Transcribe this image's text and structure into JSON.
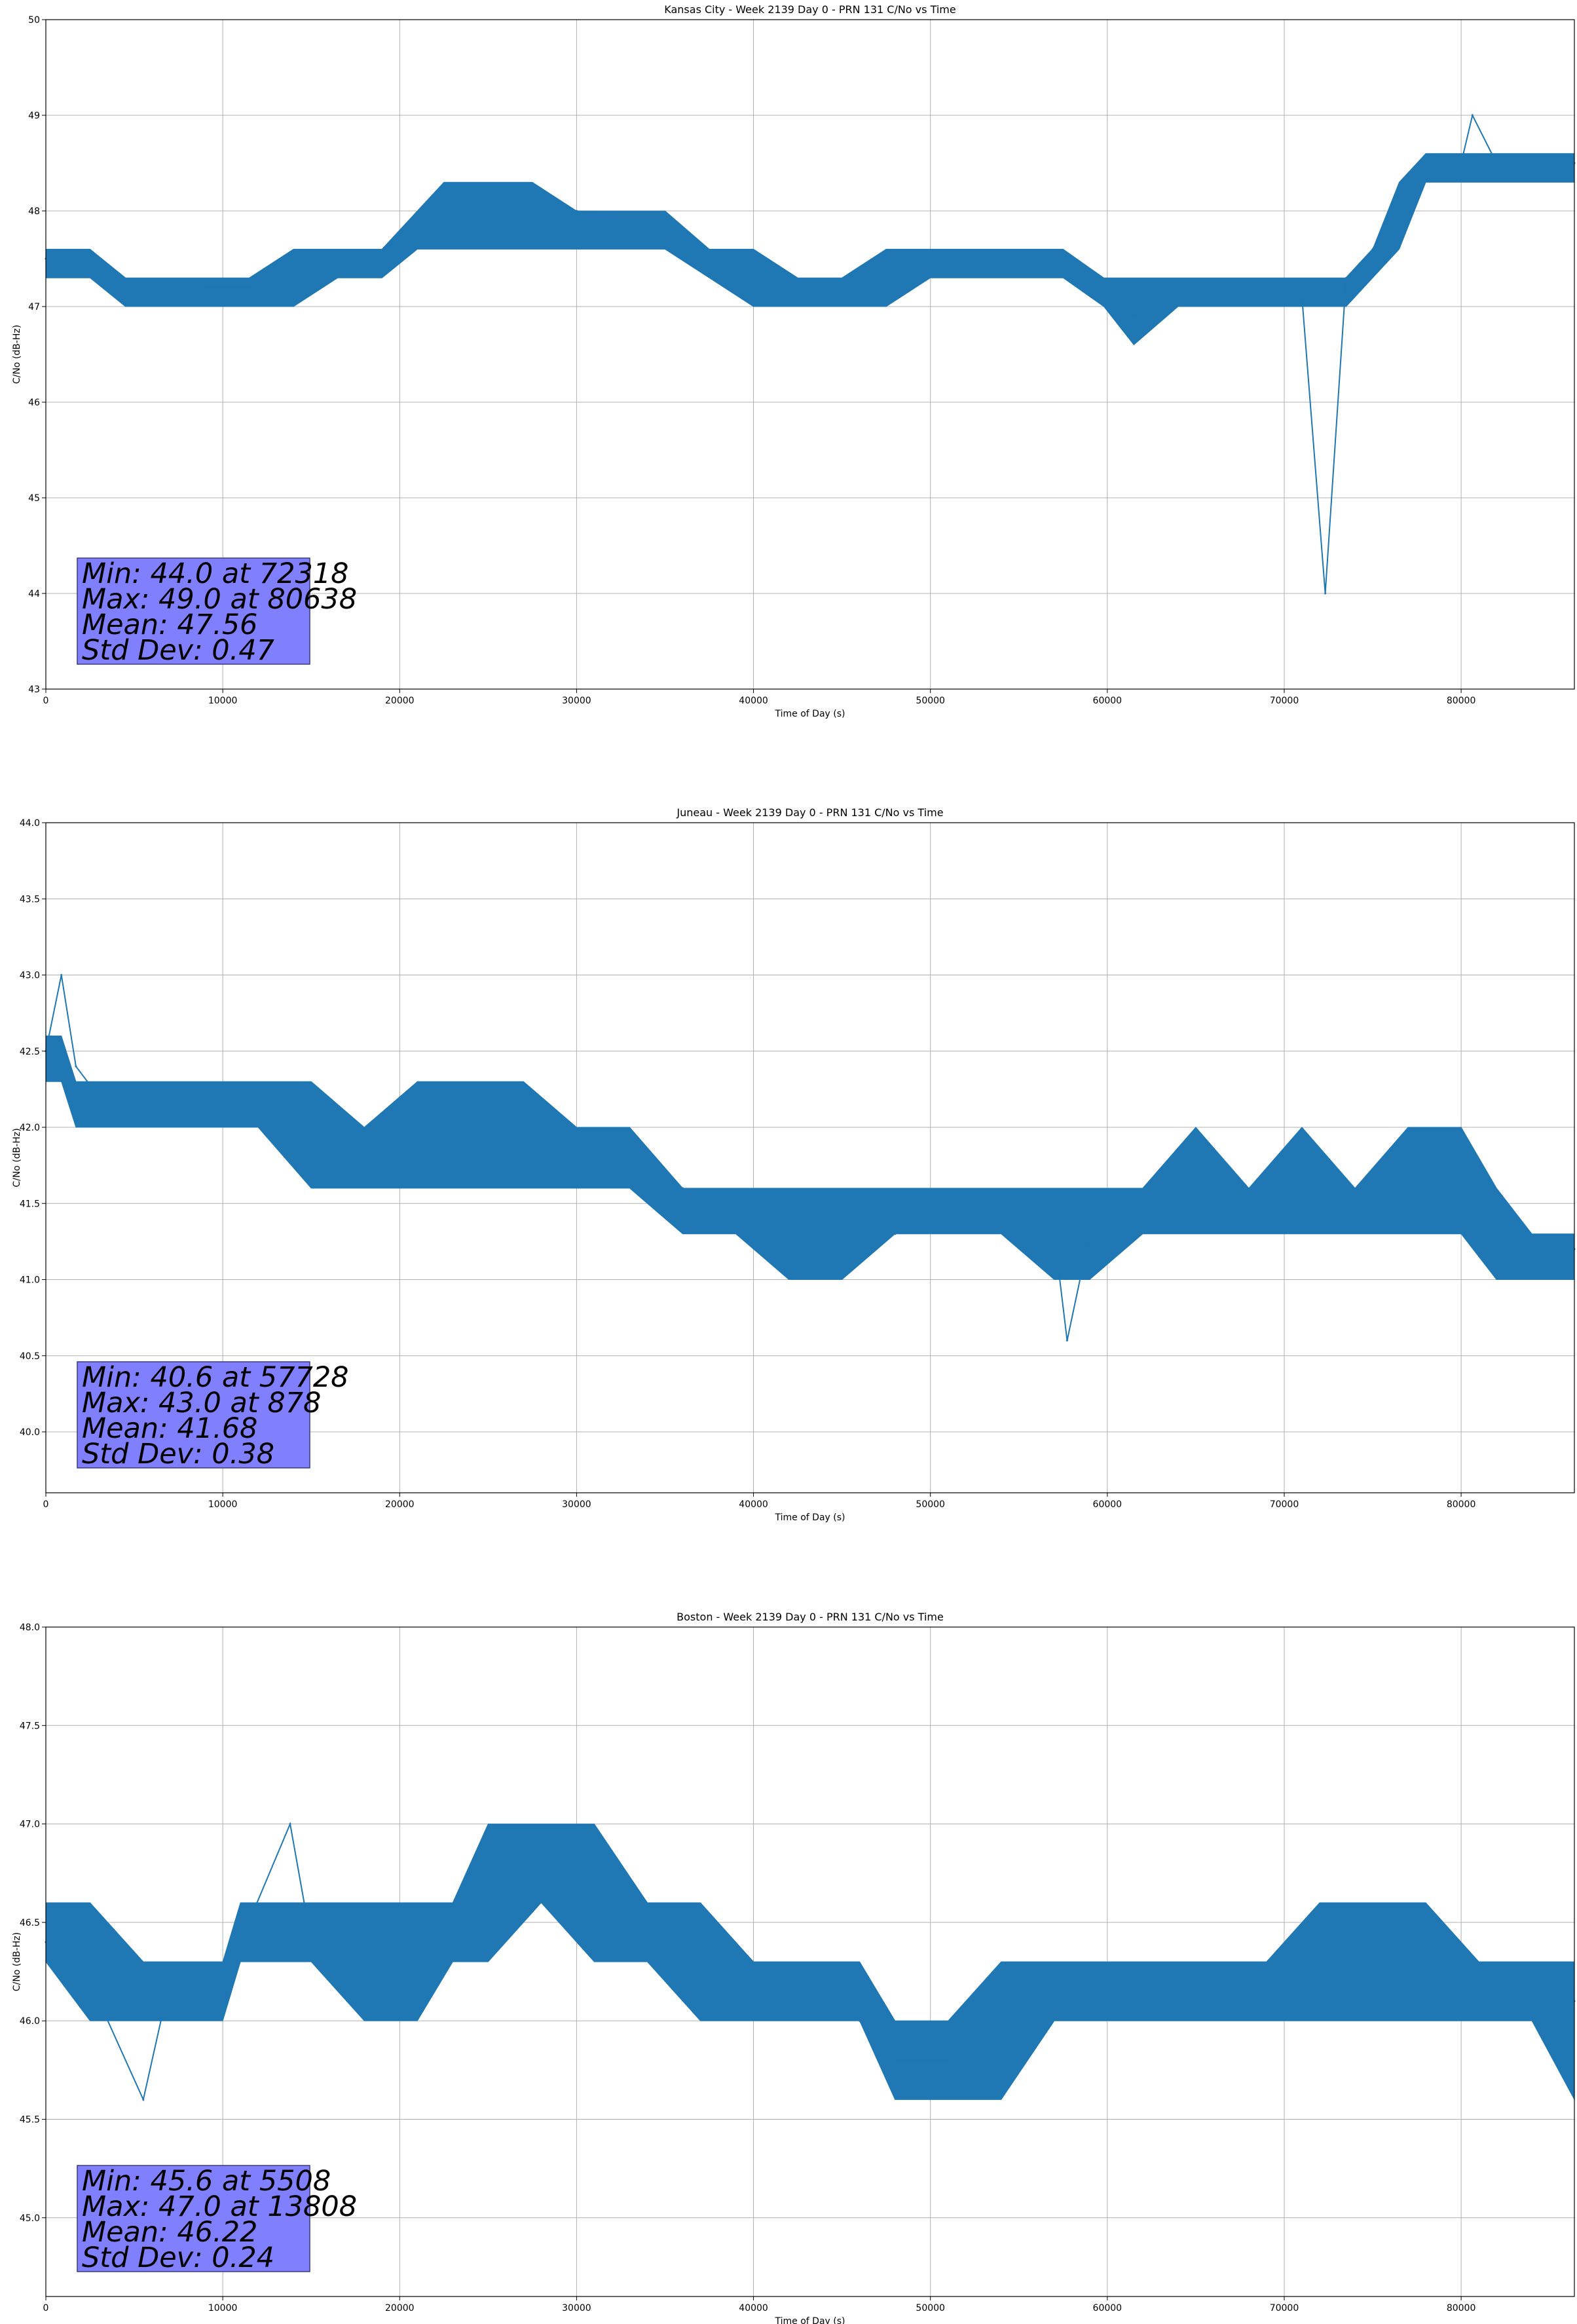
{
  "figure": {
    "colors": {
      "series": "#1f77b4",
      "grid": "#b0b0b0",
      "axes": "#000000",
      "stats_box": "#8080ff",
      "stats_box_edge": "#3a3a7a"
    }
  },
  "chart_data": [
    {
      "type": "line",
      "title": "Kansas City - Week 2139 Day 0 - PRN 131 C/No vs Time",
      "xlabel": "Time of Day (s)",
      "ylabel": "C/No (dB-Hz)",
      "xlim": [
        0,
        86400
      ],
      "ylim": [
        43,
        50
      ],
      "xticks": [
        0,
        10000,
        20000,
        30000,
        40000,
        50000,
        60000,
        70000,
        80000
      ],
      "xtick_labels": [
        "0",
        "10000",
        "20000",
        "30000",
        "40000",
        "50000",
        "60000",
        "70000",
        "80000"
      ],
      "yticks": [
        43,
        44,
        45,
        46,
        47,
        48,
        49,
        50
      ],
      "ytick_labels": [
        "43",
        "44",
        "45",
        "46",
        "47",
        "48",
        "49",
        "50"
      ],
      "grid": true,
      "series": [
        {
          "x": [
            0,
            2500,
            4500,
            6500,
            9000,
            11500,
            14000,
            16500,
            19000,
            21000,
            22500,
            25000,
            27500,
            30000,
            32500,
            35000,
            37500,
            40000,
            42500,
            45000,
            47500,
            50000,
            52500,
            55000,
            57500,
            59800,
            61500,
            64000,
            66500,
            69000,
            71000,
            72318,
            73500,
            75000,
            76500,
            78000,
            80000,
            80638,
            82000,
            84000,
            86400
          ],
          "y": [
            47.5,
            47.4,
            47.2,
            47.1,
            47.2,
            47.2,
            47.3,
            47.4,
            47.5,
            47.8,
            48.0,
            48.1,
            48.1,
            48.0,
            47.9,
            47.8,
            47.5,
            47.3,
            47.2,
            47.1,
            47.2,
            47.4,
            47.5,
            47.5,
            47.4,
            47.2,
            46.9,
            47.1,
            47.1,
            47.1,
            47.1,
            44.0,
            47.3,
            47.6,
            48.1,
            48.4,
            48.5,
            49.0,
            48.5,
            48.5,
            48.5
          ],
          "band_low": [
            47.3,
            47.3,
            47.0,
            47.0,
            47.0,
            47.0,
            47.0,
            47.3,
            47.3,
            47.6,
            47.6,
            47.6,
            47.6,
            47.6,
            47.6,
            47.6,
            47.3,
            47.0,
            47.0,
            47.0,
            47.0,
            47.3,
            47.3,
            47.3,
            47.3,
            47.0,
            46.6,
            47.0,
            47.0,
            47.0,
            47.0,
            47.0,
            47.0,
            47.3,
            47.6,
            48.3,
            48.3,
            48.3,
            48.3,
            48.3,
            48.3
          ],
          "band_high": [
            47.6,
            47.6,
            47.3,
            47.3,
            47.3,
            47.3,
            47.6,
            47.6,
            47.6,
            48.0,
            48.3,
            48.3,
            48.3,
            48.0,
            48.0,
            48.0,
            47.6,
            47.6,
            47.3,
            47.3,
            47.6,
            47.6,
            47.6,
            47.6,
            47.6,
            47.3,
            47.3,
            47.3,
            47.3,
            47.3,
            47.3,
            47.3,
            47.3,
            47.6,
            48.3,
            48.6,
            48.6,
            48.6,
            48.6,
            48.6,
            48.6
          ]
        }
      ],
      "stats": {
        "min": "Min: 44.0 at 72318",
        "max": "Max: 49.0 at 80638",
        "mean": "Mean: 47.56",
        "std": "Std Dev: 0.47"
      }
    },
    {
      "type": "line",
      "title": "Juneau - Week 2139 Day 0 - PRN 131 C/No vs Time",
      "xlabel": "Time of Day (s)",
      "ylabel": "C/No (dB-Hz)",
      "xlim": [
        0,
        86400
      ],
      "ylim": [
        39.6,
        44.0
      ],
      "xticks": [
        0,
        10000,
        20000,
        30000,
        40000,
        50000,
        60000,
        70000,
        80000
      ],
      "xtick_labels": [
        "0",
        "10000",
        "20000",
        "30000",
        "40000",
        "50000",
        "60000",
        "70000",
        "80000"
      ],
      "yticks": [
        40.0,
        40.5,
        41.0,
        41.5,
        42.0,
        42.5,
        43.0,
        43.5,
        44.0
      ],
      "ytick_labels": [
        "40.0",
        "40.5",
        "41.0",
        "41.5",
        "42.0",
        "42.5",
        "43.0",
        "43.5",
        "44.0"
      ],
      "grid": true,
      "series": [
        {
          "x": [
            0,
            878,
            1700,
            3000,
            6000,
            9000,
            12000,
            15000,
            18000,
            21000,
            24000,
            27000,
            30000,
            33000,
            36000,
            39000,
            42000,
            45000,
            48000,
            51000,
            54000,
            57000,
            57728,
            59000,
            62000,
            65000,
            68000,
            71000,
            74000,
            77000,
            80000,
            82000,
            84000,
            86400
          ],
          "y": [
            42.5,
            43.0,
            42.4,
            42.2,
            42.2,
            42.1,
            42.2,
            42.0,
            41.8,
            41.9,
            42.0,
            41.9,
            41.8,
            41.8,
            41.6,
            41.4,
            41.3,
            41.2,
            41.3,
            41.4,
            41.4,
            41.3,
            40.6,
            41.3,
            41.5,
            41.6,
            41.5,
            41.6,
            41.5,
            41.6,
            41.5,
            41.2,
            41.1,
            41.2
          ],
          "band_low": [
            42.3,
            42.3,
            42.0,
            42.0,
            42.0,
            42.0,
            42.0,
            41.6,
            41.6,
            41.6,
            41.6,
            41.6,
            41.6,
            41.6,
            41.3,
            41.3,
            41.0,
            41.0,
            41.3,
            41.3,
            41.3,
            41.0,
            41.0,
            41.0,
            41.3,
            41.3,
            41.3,
            41.3,
            41.3,
            41.3,
            41.3,
            41.0,
            41.0,
            41.0
          ],
          "band_high": [
            42.6,
            42.6,
            42.3,
            42.3,
            42.3,
            42.3,
            42.3,
            42.3,
            42.0,
            42.3,
            42.3,
            42.3,
            42.0,
            42.0,
            41.6,
            41.6,
            41.6,
            41.6,
            41.6,
            41.6,
            41.6,
            41.6,
            41.6,
            41.6,
            41.6,
            42.0,
            41.6,
            42.0,
            41.6,
            42.0,
            42.0,
            41.6,
            41.3,
            41.3
          ]
        }
      ],
      "stats": {
        "min": "Min: 40.6 at 57728",
        "max": "Max: 43.0 at 878",
        "mean": "Mean: 41.68",
        "std": "Std Dev: 0.38"
      }
    },
    {
      "type": "line",
      "title": "Boston - Week 2139 Day 0 - PRN 131 C/No vs Time",
      "xlabel": "Time of Day (s)",
      "ylabel": "C/No (dB-Hz)",
      "xlim": [
        0,
        86400
      ],
      "ylim": [
        44.6,
        48.0
      ],
      "xticks": [
        0,
        10000,
        20000,
        30000,
        40000,
        50000,
        60000,
        70000,
        80000
      ],
      "xtick_labels": [
        "0",
        "10000",
        "20000",
        "30000",
        "40000",
        "50000",
        "60000",
        "70000",
        "80000"
      ],
      "yticks": [
        45.0,
        45.5,
        46.0,
        46.5,
        47.0,
        47.5,
        48.0
      ],
      "ytick_labels": [
        "45.0",
        "45.5",
        "46.0",
        "46.5",
        "47.0",
        "47.5",
        "48.0"
      ],
      "grid": true,
      "series": [
        {
          "x": [
            0,
            2500,
            5508,
            7000,
            10000,
            11000,
            13808,
            15000,
            18000,
            21000,
            23000,
            25000,
            28000,
            31000,
            34000,
            37000,
            40000,
            43000,
            46000,
            48000,
            51000,
            54000,
            57000,
            60000,
            63000,
            66000,
            69000,
            72000,
            75000,
            78000,
            81000,
            84000,
            86400
          ],
          "y": [
            46.4,
            46.2,
            45.6,
            46.2,
            46.1,
            46.4,
            47.0,
            46.4,
            46.4,
            46.3,
            46.4,
            46.7,
            46.8,
            46.6,
            46.5,
            46.4,
            46.2,
            46.1,
            46.0,
            45.8,
            45.8,
            45.9,
            46.1,
            46.2,
            46.2,
            46.2,
            46.2,
            46.3,
            46.4,
            46.3,
            46.2,
            46.2,
            46.1
          ],
          "band_low": [
            46.3,
            46.0,
            46.0,
            46.0,
            46.0,
            46.3,
            46.3,
            46.3,
            46.0,
            46.0,
            46.3,
            46.3,
            46.6,
            46.3,
            46.3,
            46.0,
            46.0,
            46.0,
            46.0,
            45.6,
            45.6,
            45.6,
            46.0,
            46.0,
            46.0,
            46.0,
            46.0,
            46.0,
            46.0,
            46.0,
            46.0,
            46.0,
            45.6
          ],
          "band_high": [
            46.6,
            46.6,
            46.3,
            46.3,
            46.3,
            46.6,
            46.6,
            46.6,
            46.6,
            46.6,
            46.6,
            47.0,
            47.0,
            47.0,
            46.6,
            46.6,
            46.3,
            46.3,
            46.3,
            46.0,
            46.0,
            46.3,
            46.3,
            46.3,
            46.3,
            46.3,
            46.3,
            46.6,
            46.6,
            46.6,
            46.3,
            46.3,
            46.3
          ]
        }
      ],
      "stats": {
        "min": "Min: 45.6 at 5508",
        "max": "Max: 47.0 at 13808",
        "mean": "Mean: 46.22",
        "std": "Std Dev: 0.24"
      }
    }
  ]
}
